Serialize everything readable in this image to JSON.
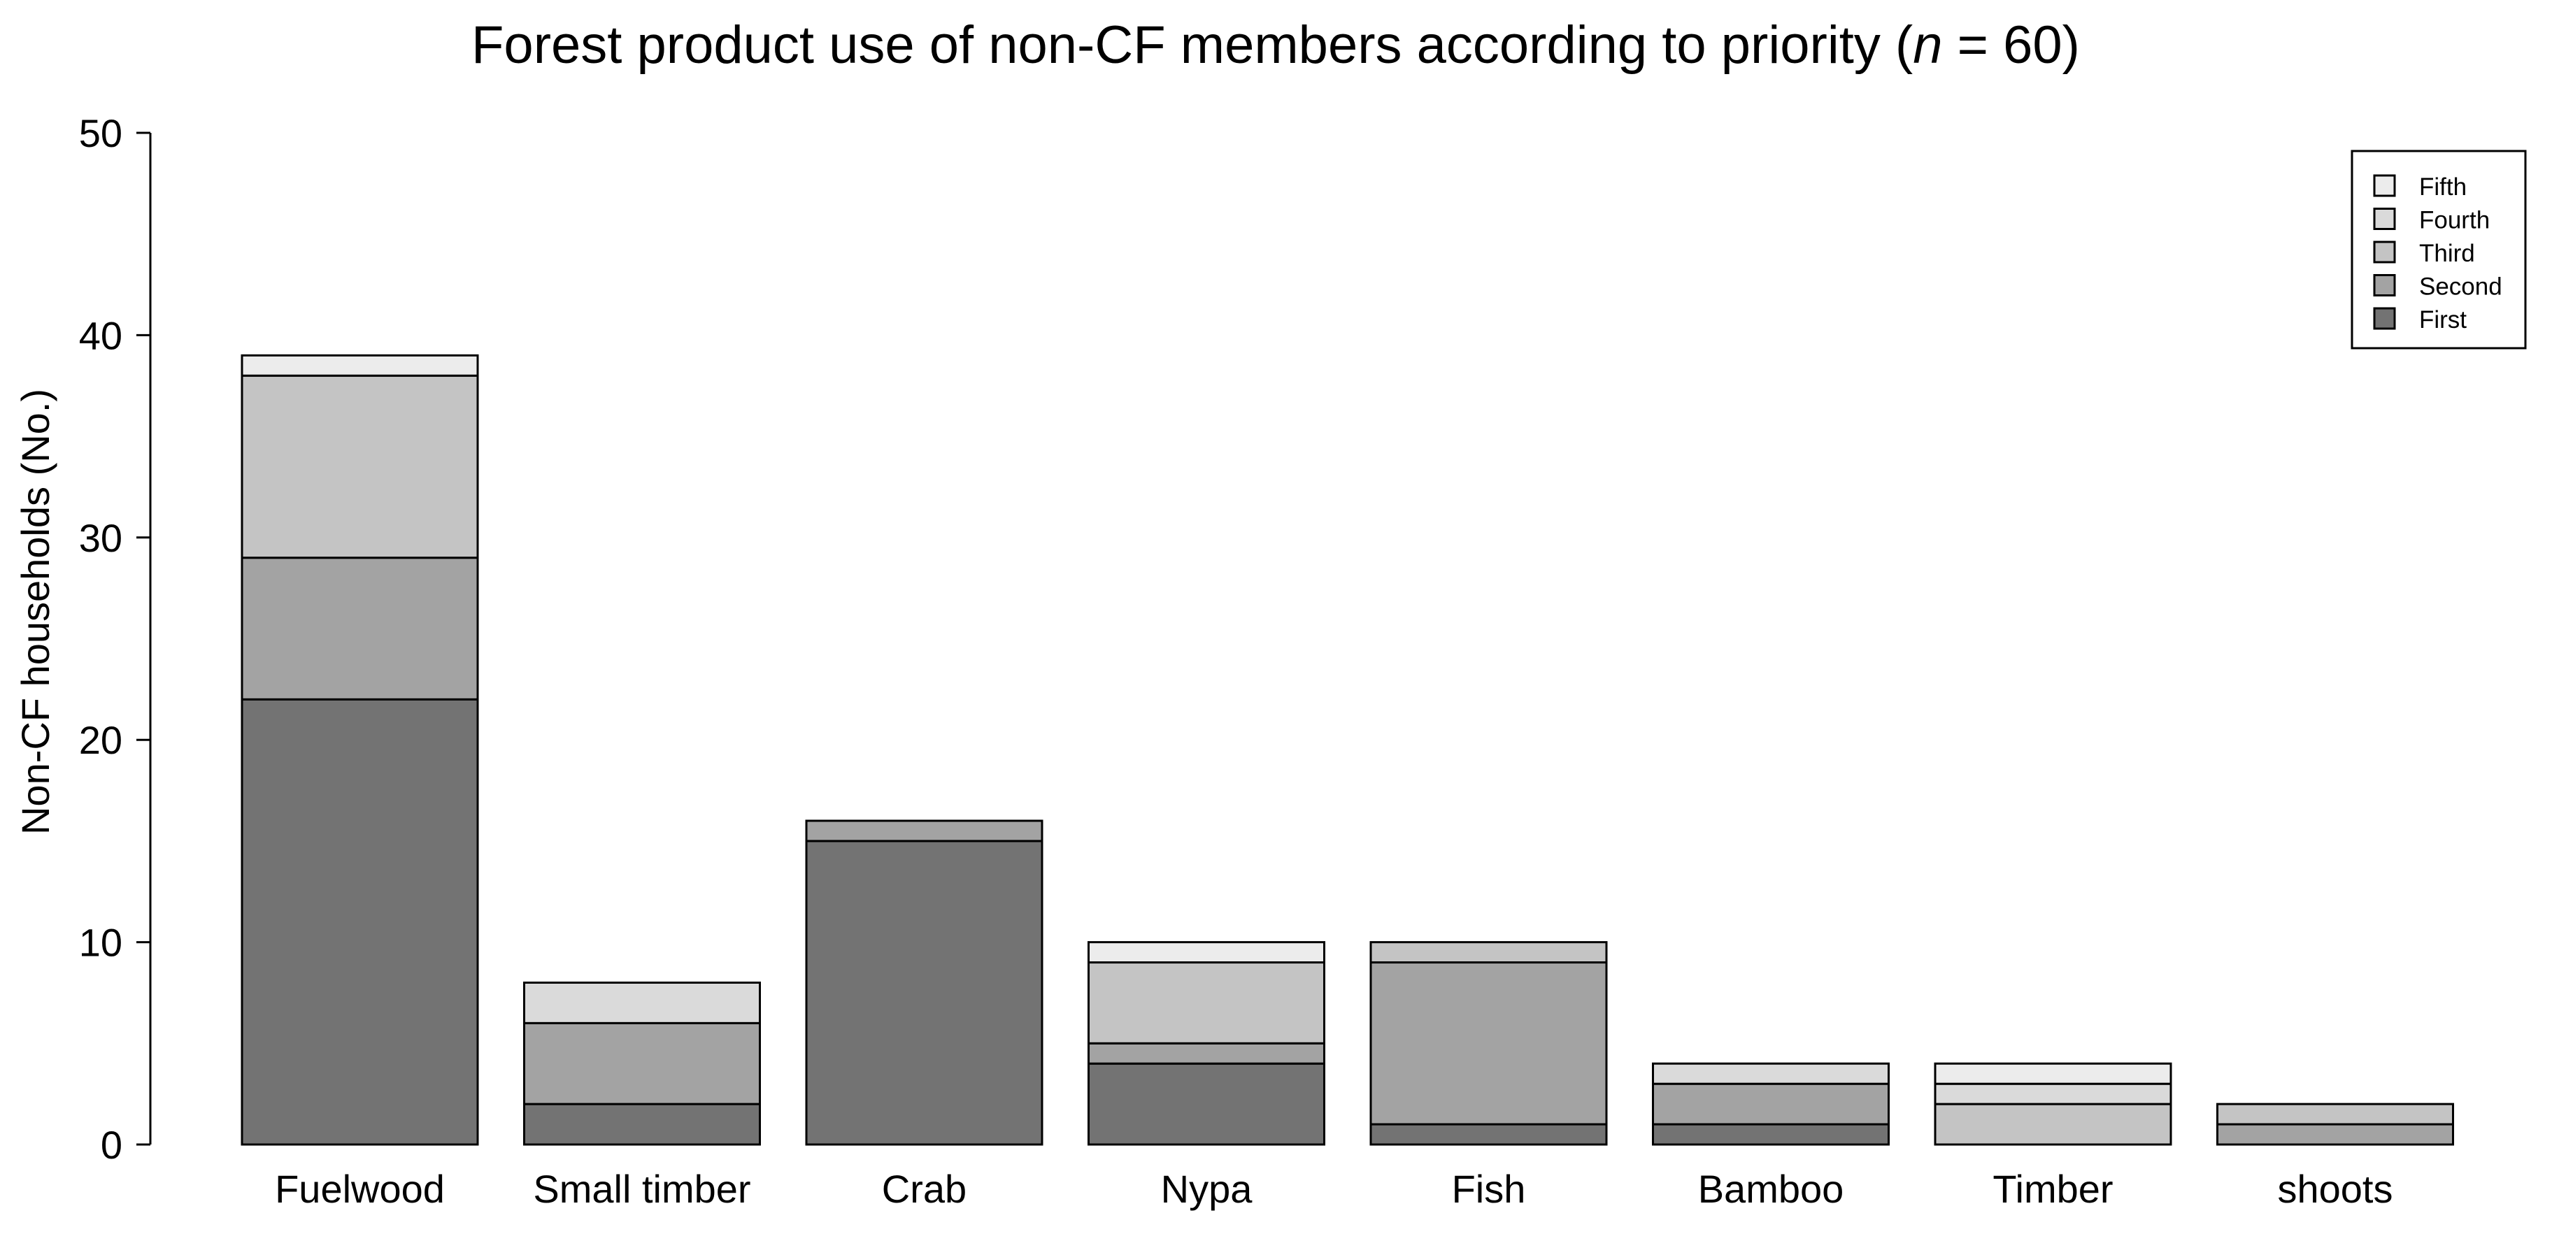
{
  "chart_data": {
    "type": "bar",
    "stacked": true,
    "title_main": "Forest product use of non-CF members according to priority (",
    "title_italic": "n",
    "title_end": " = 60)",
    "xlabel": "",
    "ylabel": "Non-CF households (No.)",
    "ylim": [
      0,
      50
    ],
    "yticks": [
      "0",
      "10",
      "20",
      "30",
      "40",
      "50"
    ],
    "categories": [
      "Fuelwood",
      "Small timber",
      "Crab",
      "Nypa",
      "Fish",
      "Bamboo",
      "Timber",
      "shoots"
    ],
    "series": [
      {
        "name": "First",
        "color": "#737373",
        "values": [
          22,
          2,
          15,
          4,
          1,
          1,
          0,
          0
        ]
      },
      {
        "name": "Second",
        "color": "#a3a3a3",
        "values": [
          7,
          4,
          1,
          1,
          8,
          2,
          0,
          1
        ]
      },
      {
        "name": "Third",
        "color": "#c4c4c4",
        "values": [
          9,
          0,
          0,
          4,
          1,
          0,
          2,
          1
        ]
      },
      {
        "name": "Fourth",
        "color": "#dadada",
        "values": [
          0,
          2,
          0,
          0,
          0,
          1,
          1,
          0
        ]
      },
      {
        "name": "Fifth",
        "color": "#ececec",
        "values": [
          1,
          0,
          0,
          1,
          0,
          0,
          1,
          0
        ]
      }
    ],
    "legend_order": [
      "Fifth",
      "Fourth",
      "Third",
      "Second",
      "First"
    ],
    "legend_position": "top-right",
    "grid": false
  }
}
